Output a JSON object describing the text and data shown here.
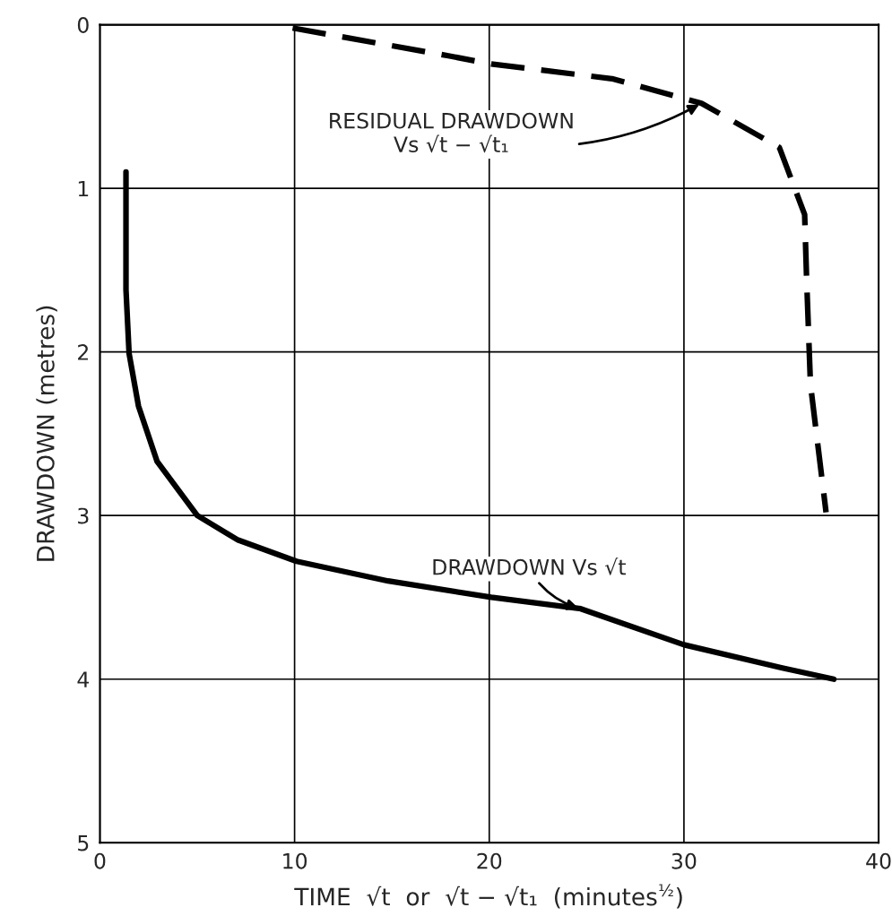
{
  "chart_data": {
    "type": "line",
    "xlabel": "TIME  √t  or  √t − √t₁  (minutes$^{½}$)",
    "ylabel": "DRAWDOWN (metres)",
    "xlim": [
      0,
      40
    ],
    "ylim": [
      5,
      0
    ],
    "xticks": [
      0,
      10,
      20,
      30,
      40
    ],
    "yticks": [
      0,
      1,
      2,
      3,
      4,
      5
    ],
    "grid": true,
    "legend": false,
    "series": [
      {
        "color": "#000000",
        "line_style": "solid",
        "x": [
          1.34,
          1.34,
          1.5,
          1.98,
          2.94,
          5.0,
          7.1,
          10.1,
          14.8,
          20.1,
          24.7,
          30.0,
          35.0,
          37.7
        ],
        "values": [
          0.9,
          1.62,
          2.01,
          2.33,
          2.67,
          3.0,
          3.15,
          3.28,
          3.4,
          3.5,
          3.57,
          3.79,
          3.93,
          4.0
        ]
      },
      {
        "color": "#000000",
        "line_style": "dashed",
        "x": [
          9.9,
          17.9,
          20.1,
          26.3,
          30.9,
          34.9,
          36.2,
          36.3,
          36.5,
          37.3
        ],
        "values": [
          0.02,
          0.19,
          0.24,
          0.33,
          0.48,
          0.75,
          1.16,
          1.55,
          2.2,
          2.98
        ]
      }
    ],
    "annotations": [
      {
        "text": "RESIDUAL DRAWDOWN\nVs √t − √t₁",
        "x": 30.9,
        "y": 0.48
      },
      {
        "text": "DRAWDOWN Vs √t",
        "x": 24.7,
        "y": 3.57
      }
    ]
  }
}
